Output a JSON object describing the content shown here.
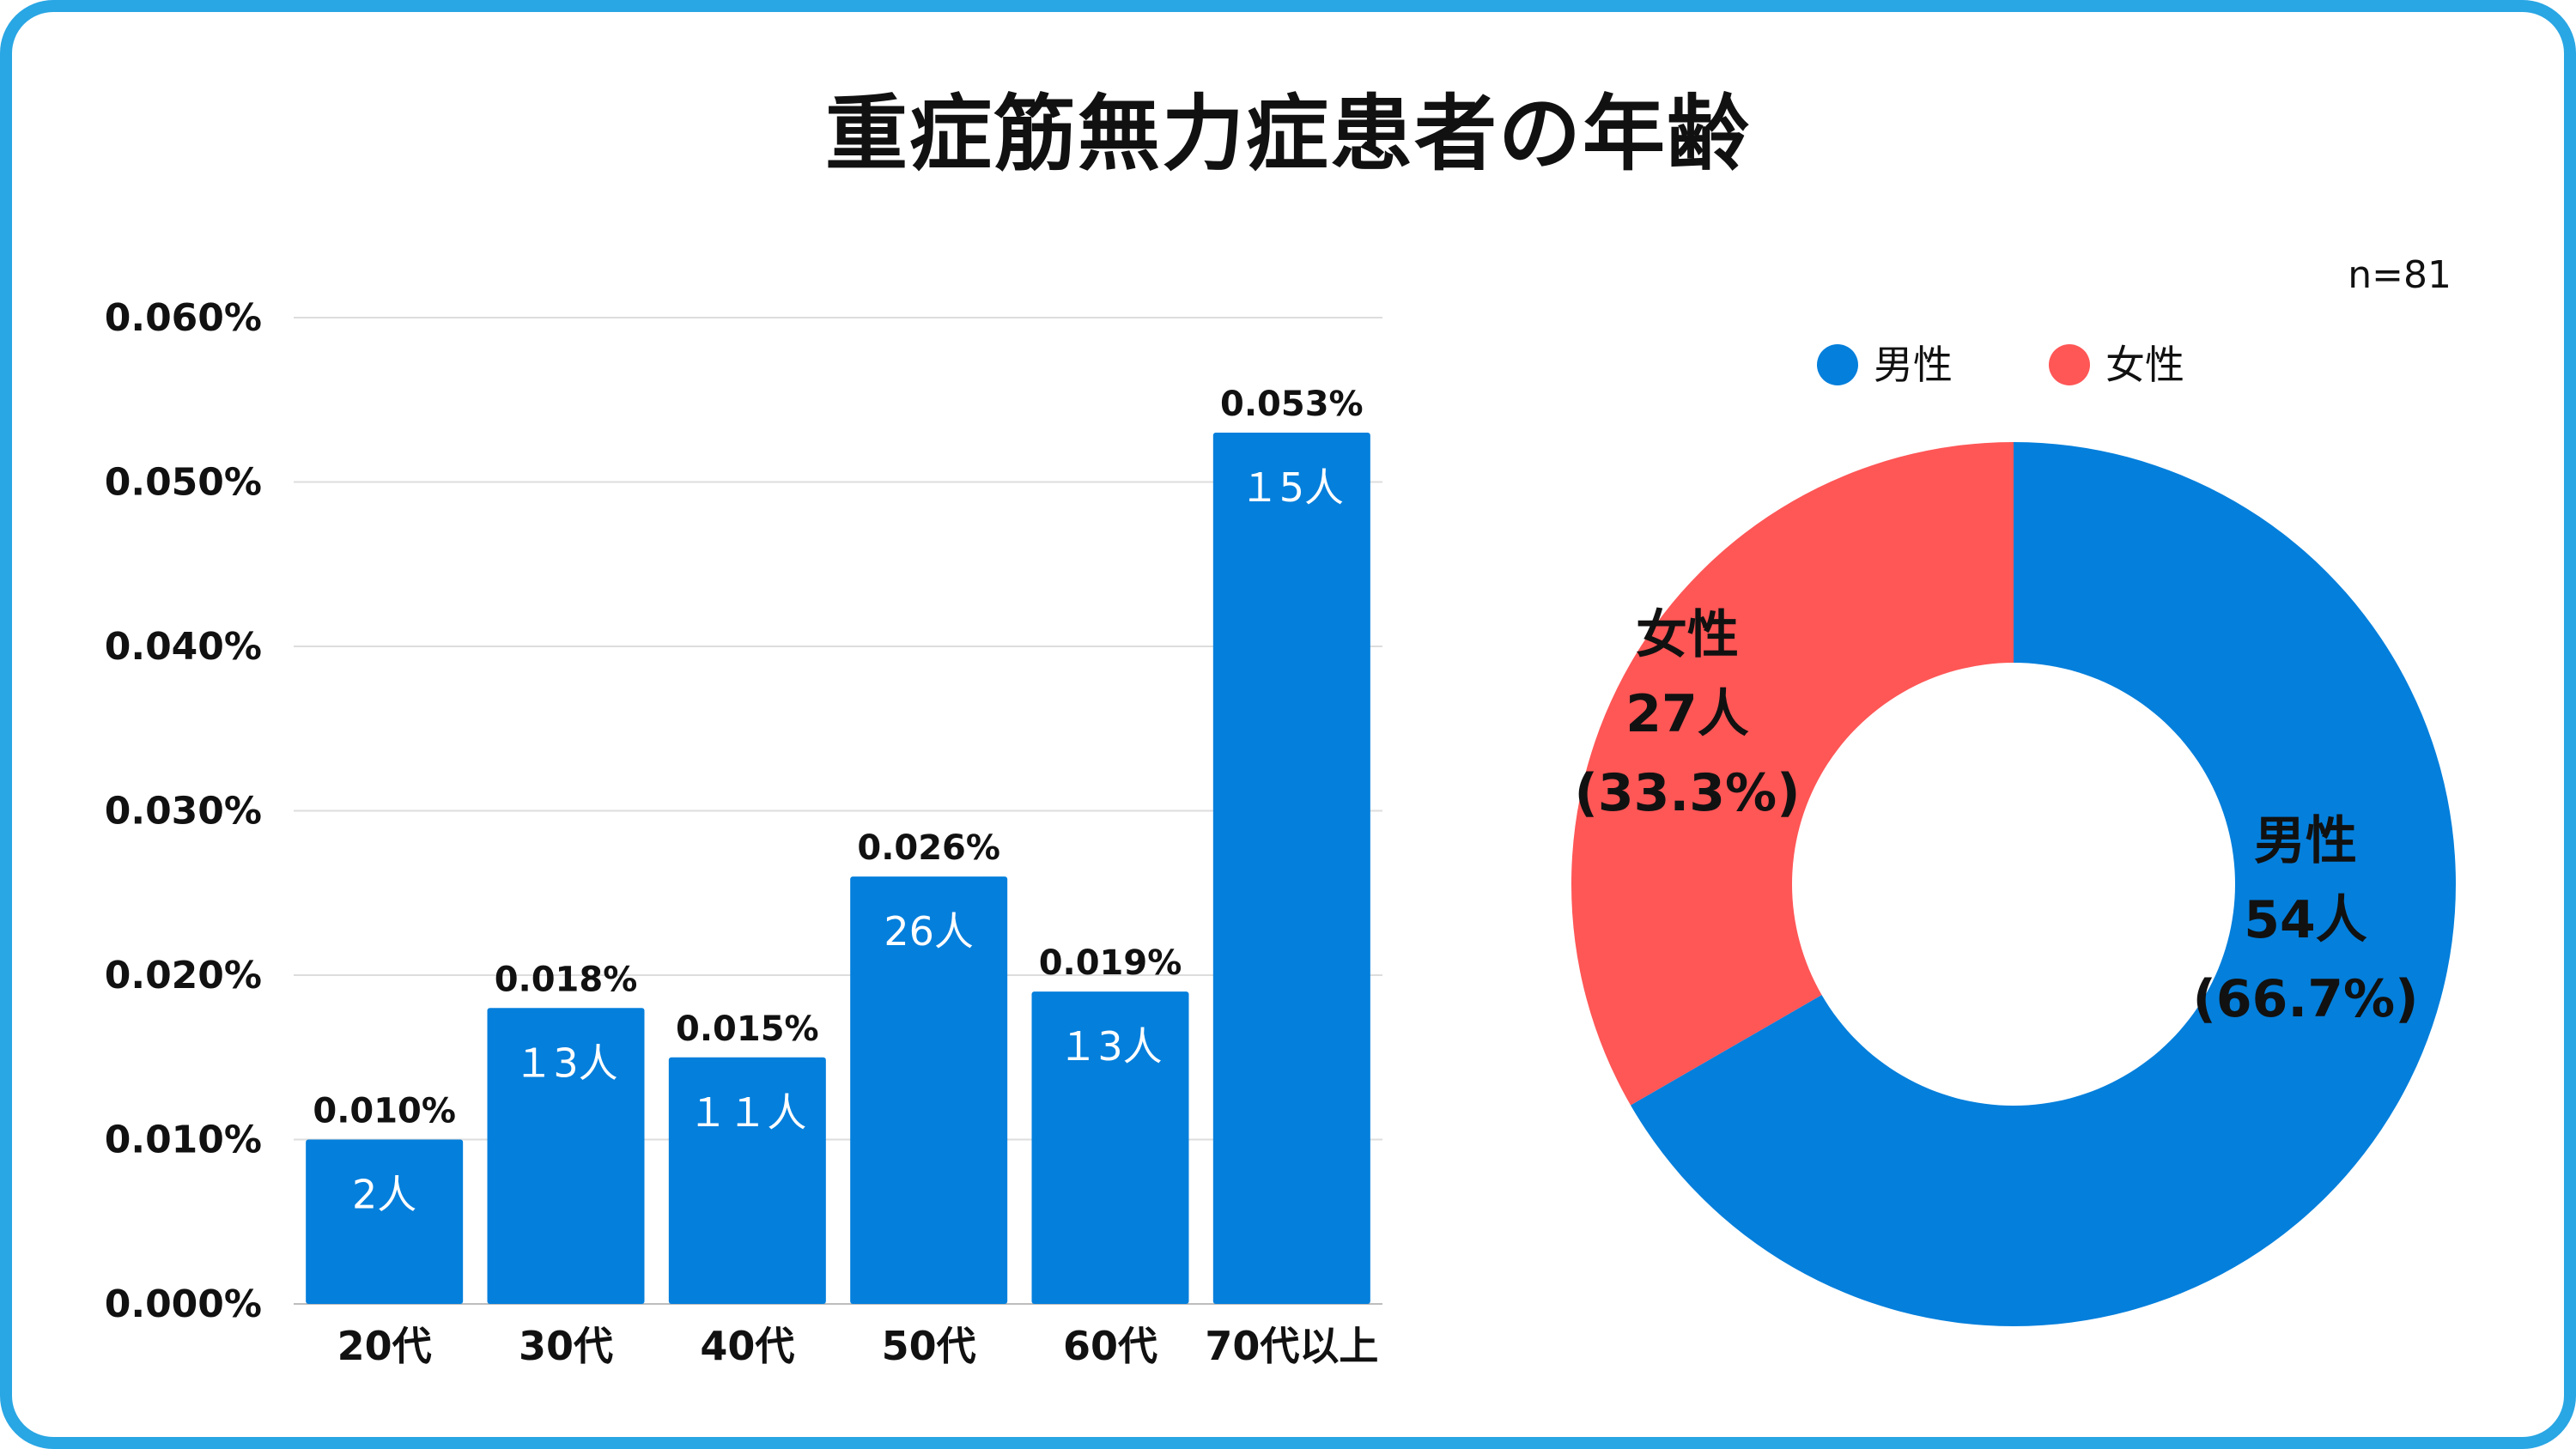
{
  "title": "重症筋無力症患者の年齢",
  "colors": {
    "frame": "#29a6e4",
    "male": "#047fdc",
    "female": "#ff5656",
    "grid": "#dddddd"
  },
  "chart_data": [
    {
      "type": "bar",
      "categories": [
        "20代",
        "30代",
        "40代",
        "50代",
        "60代",
        "70代以上"
      ],
      "values": [
        0.01,
        0.018,
        0.015,
        0.026,
        0.019,
        0.053
      ],
      "value_labels": [
        "0.010%",
        "0.018%",
        "0.015%",
        "0.026%",
        "0.019%",
        "0.053%"
      ],
      "count_labels": [
        "2人",
        "１3人",
        "１１人",
        "26人",
        "１3人",
        "１5人"
      ],
      "ylim": [
        0,
        0.06
      ],
      "yticks": [
        "0.000%",
        "0.010%",
        "0.020%",
        "0.030%",
        "0.040%",
        "0.050%",
        "0.060%"
      ],
      "grid": true,
      "color": "#047fdc"
    },
    {
      "type": "pie",
      "donut": true,
      "note": "n=81",
      "legend_position": "top",
      "slices": [
        {
          "name": "男性",
          "value": 54,
          "percent": 66.7,
          "color": "#047fdc",
          "label_lines": [
            "男性",
            "54人",
            "(66.7%)"
          ]
        },
        {
          "name": "女性",
          "value": 27,
          "percent": 33.3,
          "color": "#ff5656",
          "label_lines": [
            "女性",
            "27人",
            "(33.3%)"
          ]
        }
      ]
    }
  ]
}
